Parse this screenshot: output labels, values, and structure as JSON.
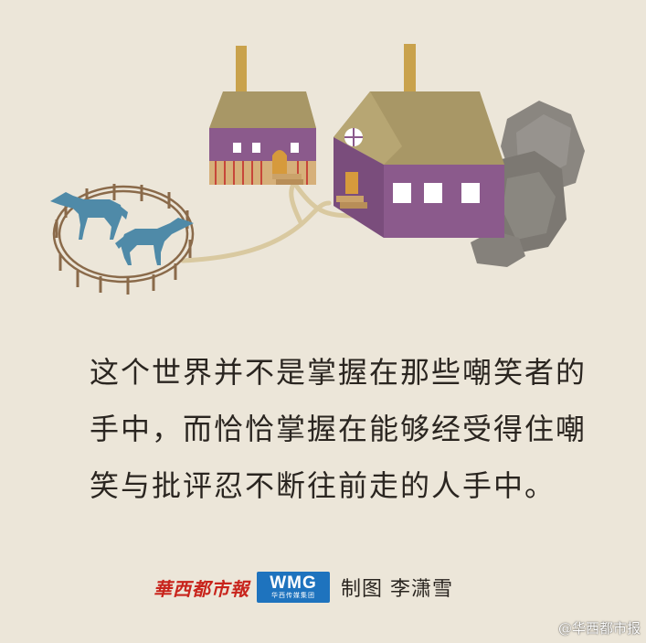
{
  "quote": {
    "lines": [
      "这个世界并不是掌握在那些嘲笑者的",
      "手中，而恰恰掌握在能够经受得住嘲",
      "笑与批评忍不断往前走的人手中。"
    ]
  },
  "credit": {
    "paper_name": "華西都市報",
    "wmg_label": "WMG",
    "wmg_sub": "华西传媒集团",
    "text": "制图 李潇雪"
  },
  "watermark": "@华西都市报",
  "colors": {
    "background": "#ece6d9",
    "house_wall": "#8b5a8c",
    "roof": "#a89766",
    "chimney": "#c9a24c",
    "horse": "#4f8aa8",
    "fence": "#8a6a4a",
    "path": "#d9c9a0",
    "rock": "#8a8680",
    "paper_logo": "#c8241c",
    "wmg": "#1e73be"
  }
}
